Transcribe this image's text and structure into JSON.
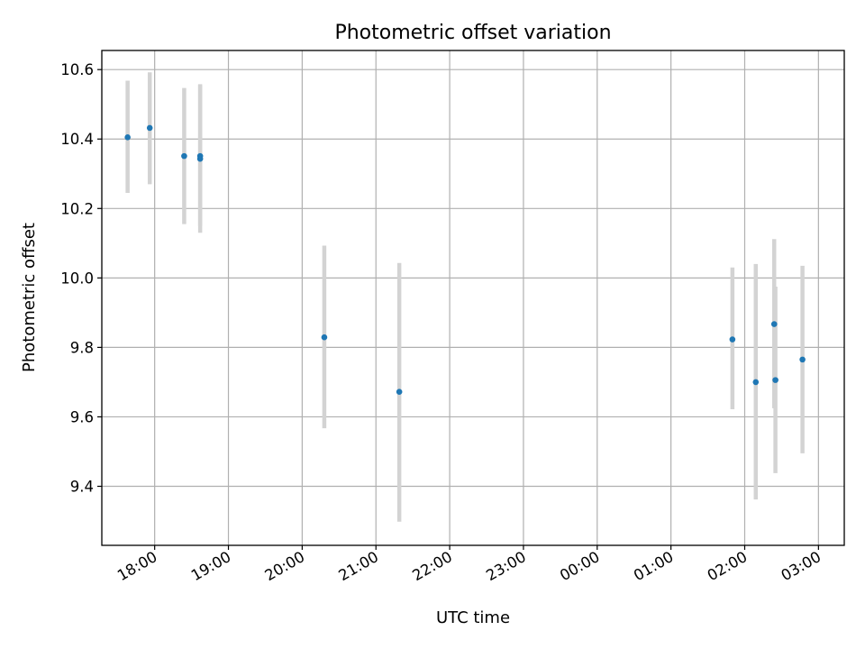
{
  "chart_data": {
    "type": "scatter",
    "title": "Photometric offset variation",
    "xlabel": "UTC time",
    "ylabel": "Photometric offset",
    "xlim": [
      "17:17",
      "03:21"
    ],
    "ylim": [
      9.23,
      10.655
    ],
    "xticks": [
      "18:00",
      "19:00",
      "20:00",
      "21:00",
      "22:00",
      "23:00",
      "00:00",
      "01:00",
      "02:00",
      "03:00"
    ],
    "yticks": [
      "9.4",
      "9.6",
      "9.8",
      "10.0",
      "10.2",
      "10.4",
      "10.6"
    ],
    "grid": true,
    "colors": {
      "point": "#1f77b4",
      "errorbar": "#d3d3d3"
    },
    "points": [
      {
        "x": "17:38",
        "y": 10.405,
        "yerr_low": 10.245,
        "yerr_high": 10.568
      },
      {
        "x": "17:56",
        "y": 10.432,
        "yerr_low": 10.27,
        "yerr_high": 10.592
      },
      {
        "x": "18:24",
        "y": 10.351,
        "yerr_low": 10.155,
        "yerr_high": 10.547
      },
      {
        "x": "18:37",
        "y": 10.351,
        "yerr_low": 10.15,
        "yerr_high": 10.555
      },
      {
        "x": "18:37",
        "y": 10.343,
        "yerr_low": 10.13,
        "yerr_high": 10.558
      },
      {
        "x": "20:18",
        "y": 9.829,
        "yerr_low": 9.567,
        "yerr_high": 10.093
      },
      {
        "x": "21:19",
        "y": 9.672,
        "yerr_low": 9.298,
        "yerr_high": 10.043
      },
      {
        "x": "01:50",
        "y": 9.823,
        "yerr_low": 9.622,
        "yerr_high": 10.03
      },
      {
        "x": "02:09",
        "y": 9.7,
        "yerr_low": 9.362,
        "yerr_high": 10.04
      },
      {
        "x": "02:24",
        "y": 9.867,
        "yerr_low": 9.625,
        "yerr_high": 10.112
      },
      {
        "x": "02:25",
        "y": 9.706,
        "yerr_low": 9.438,
        "yerr_high": 9.975
      },
      {
        "x": "02:47",
        "y": 9.765,
        "yerr_low": 9.495,
        "yerr_high": 10.035
      }
    ]
  }
}
